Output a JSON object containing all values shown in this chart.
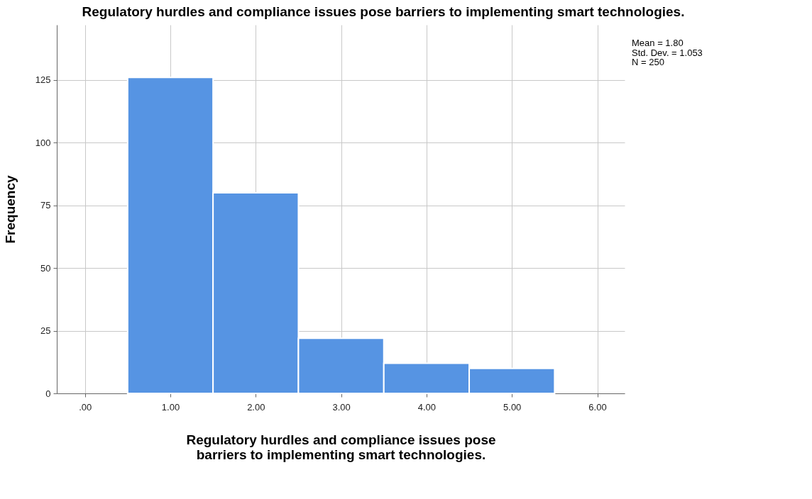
{
  "chart_data": {
    "type": "histogram",
    "title": "Regulatory hurdles and compliance issues pose barriers to implementing smart technologies.",
    "xlabel": "Regulatory hurdles and compliance issues pose barriers to implementing smart technologies.",
    "ylabel": "Frequency",
    "bins": [
      0.5,
      1.5,
      2.5,
      3.5,
      4.5,
      5.5
    ],
    "values": [
      126,
      80,
      22,
      12,
      10
    ],
    "color": "#5694e3",
    "xlim": [
      -0.33,
      6.32
    ],
    "xticks": [
      {
        "value": 0,
        "label": ".00"
      },
      {
        "value": 1,
        "label": "1.00"
      },
      {
        "value": 2,
        "label": "2.00"
      },
      {
        "value": 3,
        "label": "3.00"
      },
      {
        "value": 4,
        "label": "4.00"
      },
      {
        "value": 5,
        "label": "5.00"
      },
      {
        "value": 6,
        "label": "6.00"
      }
    ],
    "ylim": [
      0,
      147
    ],
    "yticks": [
      0,
      25,
      50,
      75,
      100,
      125
    ],
    "grid": true,
    "annotations": [
      "Mean = 1.80",
      "Std. Dev. = 1.053",
      "N = 250"
    ]
  }
}
